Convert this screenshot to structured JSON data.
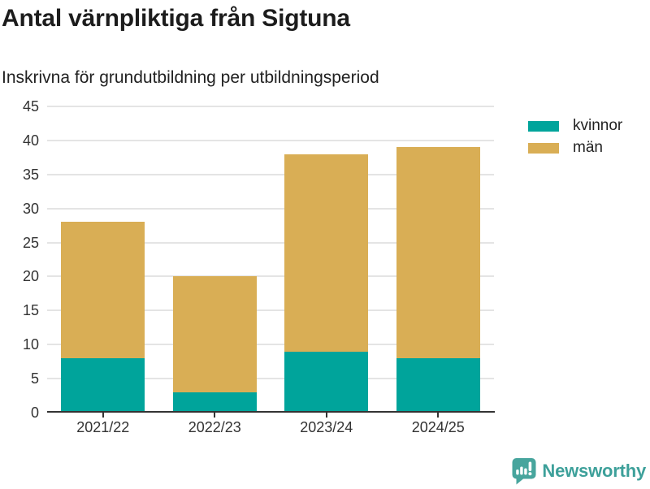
{
  "header": {
    "title": "Antal värnpliktiga från Sigtuna",
    "subtitle": "Inskrivna för grundutbildning per utbildningsperiod"
  },
  "chart_data": {
    "type": "bar",
    "stacked": true,
    "title": "Antal värnpliktiga från Sigtuna",
    "subtitle": "Inskrivna för grundutbildning per utbildningsperiod",
    "categories": [
      "2021/22",
      "2022/23",
      "2023/24",
      "2024/25"
    ],
    "series": [
      {
        "name": "kvinnor",
        "color": "#00a49b",
        "values": [
          8,
          3,
          9,
          8
        ]
      },
      {
        "name": "män",
        "color": "#d9ae55",
        "values": [
          20,
          17,
          29,
          31
        ]
      }
    ],
    "totals": [
      28,
      20,
      38,
      39
    ],
    "xlabel": "",
    "ylabel": "",
    "ylim": [
      0,
      45
    ],
    "ytick_step": 5,
    "yticks": [
      0,
      5,
      10,
      15,
      20,
      25,
      30,
      35,
      40,
      45
    ],
    "grid": true,
    "legend_position": "right"
  },
  "colors": {
    "title": "#1c1c1c",
    "text": "#333333",
    "grid": "#e4e4e4",
    "axis": "#333333",
    "brand_teal": "#3da09a",
    "logo_bubble": "#47a59d"
  },
  "branding": {
    "logo_text": "Newsworthy",
    "logo_icon": "bar-chart-speech-bubble-icon"
  }
}
